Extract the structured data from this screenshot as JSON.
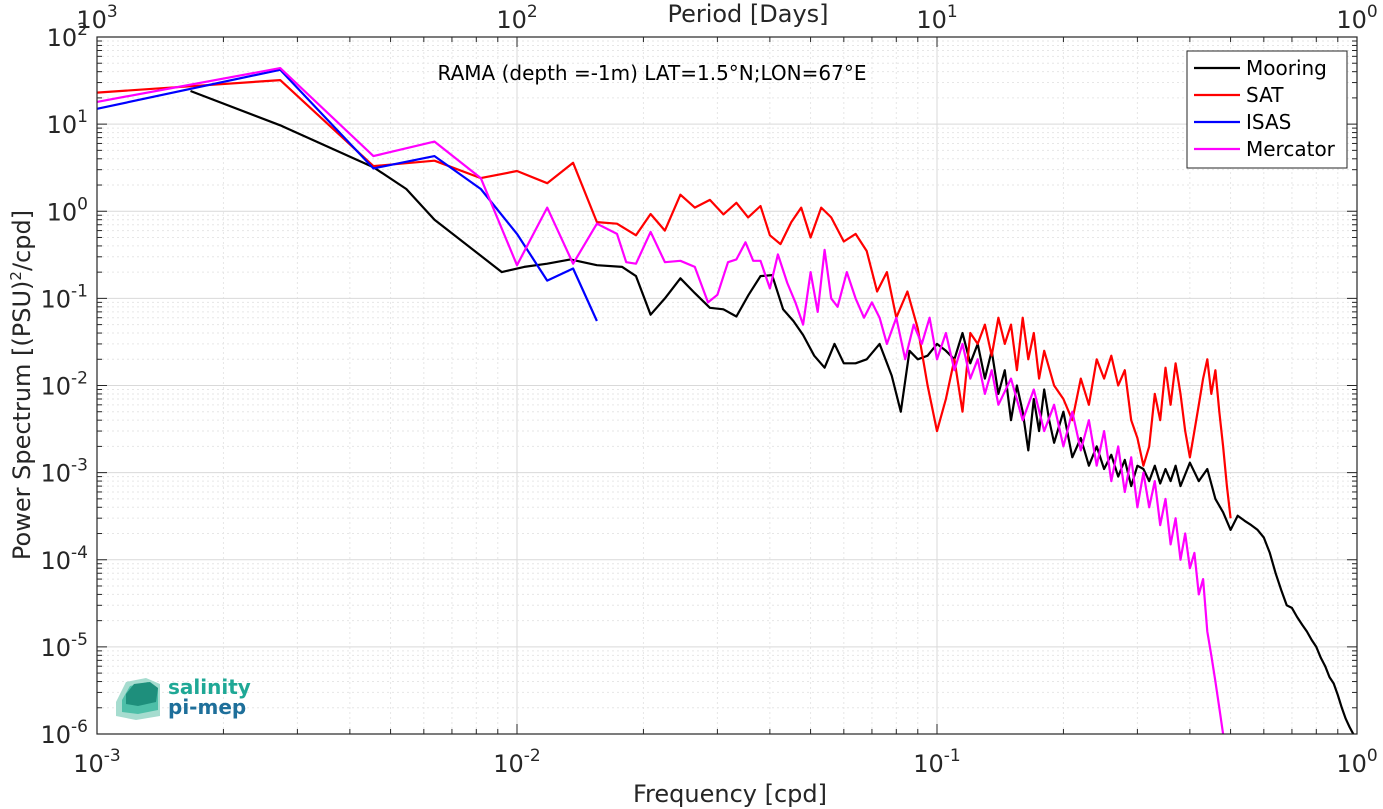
{
  "chart_data": {
    "type": "line",
    "title": "RAMA (depth =-1m) LAT=1.5°N;LON=67°E",
    "xlabel": "Frequency [cpd]",
    "ylabel": "Power Spectrum [(PSU)²/cpd]",
    "x2label": "Period [Days]",
    "xscale": "log",
    "yscale": "log",
    "xlim": [
      0.001,
      1
    ],
    "ylim": [
      1e-06,
      100
    ],
    "grid": true,
    "legend_position": "top-right",
    "x_ticks": [
      {
        "value": 0.001,
        "base": "10",
        "exp": "-3"
      },
      {
        "value": 0.01,
        "base": "10",
        "exp": "-2"
      },
      {
        "value": 0.1,
        "base": "10",
        "exp": "-1"
      },
      {
        "value": 1,
        "base": "10",
        "exp": "0"
      }
    ],
    "x2_ticks": [
      {
        "value": 0.001,
        "base": "10",
        "exp": "3"
      },
      {
        "value": 0.01,
        "base": "10",
        "exp": "2"
      },
      {
        "value": 0.1,
        "base": "10",
        "exp": "1"
      },
      {
        "value": 1,
        "base": "10",
        "exp": "0"
      }
    ],
    "y_ticks": [
      {
        "value": 100,
        "base": "10",
        "exp": "2"
      },
      {
        "value": 10,
        "base": "10",
        "exp": "1"
      },
      {
        "value": 1,
        "base": "10",
        "exp": "0"
      },
      {
        "value": 0.1,
        "base": "10",
        "exp": "-1"
      },
      {
        "value": 0.01,
        "base": "10",
        "exp": "-2"
      },
      {
        "value": 0.001,
        "base": "10",
        "exp": "-3"
      },
      {
        "value": 0.0001,
        "base": "10",
        "exp": "-4"
      },
      {
        "value": 1e-05,
        "base": "10",
        "exp": "-5"
      },
      {
        "value": 1e-06,
        "base": "10",
        "exp": "-6"
      }
    ],
    "series": [
      {
        "name": "Mooring",
        "color": "#000000",
        "points": [
          [
            0.00167,
            24
          ],
          [
            0.00273,
            9.7
          ],
          [
            0.00455,
            3.2
          ],
          [
            0.00545,
            1.8
          ],
          [
            0.00636,
            0.8
          ],
          [
            0.0092,
            0.2
          ],
          [
            0.0104,
            0.23
          ],
          [
            0.0118,
            0.25
          ],
          [
            0.0134,
            0.28
          ],
          [
            0.0155,
            0.24
          ],
          [
            0.0178,
            0.23
          ],
          [
            0.0192,
            0.18
          ],
          [
            0.0208,
            0.065
          ],
          [
            0.0225,
            0.1
          ],
          [
            0.0245,
            0.17
          ],
          [
            0.0265,
            0.115
          ],
          [
            0.0288,
            0.078
          ],
          [
            0.031,
            0.075
          ],
          [
            0.0333,
            0.062
          ],
          [
            0.0356,
            0.11
          ],
          [
            0.038,
            0.18
          ],
          [
            0.0405,
            0.185
          ],
          [
            0.043,
            0.075
          ],
          [
            0.0455,
            0.055
          ],
          [
            0.048,
            0.038
          ],
          [
            0.051,
            0.022
          ],
          [
            0.054,
            0.016
          ],
          [
            0.057,
            0.03
          ],
          [
            0.06,
            0.018
          ],
          [
            0.064,
            0.018
          ],
          [
            0.068,
            0.02
          ],
          [
            0.073,
            0.03
          ],
          [
            0.078,
            0.013
          ],
          [
            0.082,
            0.005
          ],
          [
            0.086,
            0.025
          ],
          [
            0.09,
            0.02
          ],
          [
            0.095,
            0.022
          ],
          [
            0.1,
            0.03
          ],
          [
            0.105,
            0.025
          ],
          [
            0.11,
            0.02
          ],
          [
            0.115,
            0.04
          ],
          [
            0.12,
            0.018
          ],
          [
            0.125,
            0.03
          ],
          [
            0.13,
            0.012
          ],
          [
            0.135,
            0.025
          ],
          [
            0.14,
            0.008
          ],
          [
            0.145,
            0.015
          ],
          [
            0.15,
            0.004
          ],
          [
            0.155,
            0.01
          ],
          [
            0.16,
            0.005
          ],
          [
            0.165,
            0.0018
          ],
          [
            0.17,
            0.007
          ],
          [
            0.175,
            0.003
          ],
          [
            0.18,
            0.009
          ],
          [
            0.185,
            0.004
          ],
          [
            0.19,
            0.0022
          ],
          [
            0.2,
            0.005
          ],
          [
            0.21,
            0.0015
          ],
          [
            0.22,
            0.0025
          ],
          [
            0.23,
            0.0012
          ],
          [
            0.24,
            0.002
          ],
          [
            0.25,
            0.0011
          ],
          [
            0.26,
            0.0016
          ],
          [
            0.27,
            0.0009
          ],
          [
            0.28,
            0.0014
          ],
          [
            0.29,
            0.0007
          ],
          [
            0.3,
            0.0012
          ],
          [
            0.31,
            0.0011
          ],
          [
            0.32,
            0.0008
          ],
          [
            0.33,
            0.0012
          ],
          [
            0.34,
            0.00075
          ],
          [
            0.35,
            0.0011
          ],
          [
            0.36,
            0.0008
          ],
          [
            0.37,
            0.0012
          ],
          [
            0.38,
            0.0007
          ],
          [
            0.4,
            0.0013
          ],
          [
            0.42,
            0.0008
          ],
          [
            0.44,
            0.0011
          ],
          [
            0.46,
            0.0005
          ],
          [
            0.48,
            0.00035
          ],
          [
            0.5,
            0.00022
          ],
          [
            0.52,
            0.00032
          ],
          [
            0.54,
            0.00028
          ],
          [
            0.56,
            0.00025
          ],
          [
            0.58,
            0.00022
          ],
          [
            0.6,
            0.00018
          ],
          [
            0.62,
            0.00012
          ],
          [
            0.64,
            7e-05
          ],
          [
            0.66,
            4.5e-05
          ],
          [
            0.68,
            3e-05
          ],
          [
            0.7,
            2.8e-05
          ],
          [
            0.72,
            2.2e-05
          ],
          [
            0.74,
            1.8e-05
          ],
          [
            0.76,
            1.5e-05
          ],
          [
            0.78,
            1.2e-05
          ],
          [
            0.8,
            1e-05
          ],
          [
            0.82,
            7.5e-06
          ],
          [
            0.84,
            6e-06
          ],
          [
            0.86,
            4.5e-06
          ],
          [
            0.88,
            3.8e-06
          ],
          [
            0.9,
            2.8e-06
          ],
          [
            0.92,
            2e-06
          ],
          [
            0.94,
            1.5e-06
          ],
          [
            0.96,
            1.2e-06
          ],
          [
            0.98,
            1e-06
          ]
        ]
      },
      {
        "name": "SAT",
        "color": "#ff0000",
        "points": [
          [
            0.001,
            23
          ],
          [
            0.00182,
            28
          ],
          [
            0.00273,
            32
          ],
          [
            0.00455,
            3.3
          ],
          [
            0.00636,
            3.8
          ],
          [
            0.0082,
            2.4
          ],
          [
            0.01,
            2.9
          ],
          [
            0.0118,
            2.1
          ],
          [
            0.0136,
            3.6
          ],
          [
            0.0155,
            0.75
          ],
          [
            0.0173,
            0.72
          ],
          [
            0.0192,
            0.53
          ],
          [
            0.0208,
            0.93
          ],
          [
            0.0225,
            0.6
          ],
          [
            0.0245,
            1.55
          ],
          [
            0.0265,
            1.1
          ],
          [
            0.0288,
            1.35
          ],
          [
            0.031,
            0.92
          ],
          [
            0.0333,
            1.25
          ],
          [
            0.0355,
            0.85
          ],
          [
            0.038,
            1.15
          ],
          [
            0.04,
            0.53
          ],
          [
            0.0424,
            0.42
          ],
          [
            0.045,
            0.75
          ],
          [
            0.0475,
            1.1
          ],
          [
            0.05,
            0.5
          ],
          [
            0.053,
            1.1
          ],
          [
            0.056,
            0.85
          ],
          [
            0.06,
            0.45
          ],
          [
            0.064,
            0.55
          ],
          [
            0.068,
            0.35
          ],
          [
            0.072,
            0.12
          ],
          [
            0.076,
            0.2
          ],
          [
            0.08,
            0.06
          ],
          [
            0.085,
            0.12
          ],
          [
            0.09,
            0.045
          ],
          [
            0.095,
            0.01
          ],
          [
            0.1,
            0.003
          ],
          [
            0.105,
            0.007
          ],
          [
            0.11,
            0.02
          ],
          [
            0.115,
            0.005
          ],
          [
            0.12,
            0.04
          ],
          [
            0.125,
            0.03
          ],
          [
            0.13,
            0.05
          ],
          [
            0.135,
            0.022
          ],
          [
            0.14,
            0.06
          ],
          [
            0.145,
            0.03
          ],
          [
            0.15,
            0.05
          ],
          [
            0.155,
            0.015
          ],
          [
            0.16,
            0.06
          ],
          [
            0.165,
            0.02
          ],
          [
            0.17,
            0.04
          ],
          [
            0.175,
            0.012
          ],
          [
            0.18,
            0.025
          ],
          [
            0.19,
            0.01
          ],
          [
            0.2,
            0.007
          ],
          [
            0.21,
            0.004
          ],
          [
            0.22,
            0.012
          ],
          [
            0.23,
            0.006
          ],
          [
            0.24,
            0.02
          ],
          [
            0.25,
            0.012
          ],
          [
            0.26,
            0.022
          ],
          [
            0.27,
            0.01
          ],
          [
            0.28,
            0.015
          ],
          [
            0.29,
            0.004
          ],
          [
            0.3,
            0.0025
          ],
          [
            0.31,
            0.0012
          ],
          [
            0.32,
            0.002
          ],
          [
            0.33,
            0.008
          ],
          [
            0.34,
            0.004
          ],
          [
            0.35,
            0.016
          ],
          [
            0.36,
            0.006
          ],
          [
            0.37,
            0.018
          ],
          [
            0.38,
            0.008
          ],
          [
            0.39,
            0.003
          ],
          [
            0.4,
            0.0015
          ],
          [
            0.41,
            0.003
          ],
          [
            0.42,
            0.006
          ],
          [
            0.43,
            0.012
          ],
          [
            0.44,
            0.02
          ],
          [
            0.45,
            0.008
          ],
          [
            0.46,
            0.015
          ],
          [
            0.47,
            0.005
          ],
          [
            0.48,
            0.002
          ],
          [
            0.49,
            0.0007
          ],
          [
            0.5,
            0.0003
          ]
        ]
      },
      {
        "name": "ISAS",
        "color": "#0000ff",
        "points": [
          [
            0.001,
            15
          ],
          [
            0.00273,
            42
          ],
          [
            0.00455,
            3.1
          ],
          [
            0.00636,
            4.3
          ],
          [
            0.0082,
            1.8
          ],
          [
            0.01,
            0.55
          ],
          [
            0.0118,
            0.16
          ],
          [
            0.0136,
            0.22
          ],
          [
            0.0155,
            0.055
          ]
        ]
      },
      {
        "name": "Mercator",
        "color": "#ff00ff",
        "points": [
          [
            0.001,
            18
          ],
          [
            0.00273,
            44
          ],
          [
            0.00455,
            4.3
          ],
          [
            0.00636,
            6.3
          ],
          [
            0.0082,
            2.4
          ],
          [
            0.01,
            0.24
          ],
          [
            0.0118,
            1.1
          ],
          [
            0.0136,
            0.25
          ],
          [
            0.0155,
            0.72
          ],
          [
            0.0173,
            0.55
          ],
          [
            0.0182,
            0.26
          ],
          [
            0.0192,
            0.25
          ],
          [
            0.0208,
            0.58
          ],
          [
            0.0225,
            0.26
          ],
          [
            0.0245,
            0.27
          ],
          [
            0.0265,
            0.23
          ],
          [
            0.0285,
            0.09
          ],
          [
            0.03,
            0.11
          ],
          [
            0.0318,
            0.26
          ],
          [
            0.0333,
            0.28
          ],
          [
            0.035,
            0.44
          ],
          [
            0.0365,
            0.27
          ],
          [
            0.038,
            0.27
          ],
          [
            0.04,
            0.13
          ],
          [
            0.0418,
            0.32
          ],
          [
            0.044,
            0.15
          ],
          [
            0.046,
            0.09
          ],
          [
            0.048,
            0.05
          ],
          [
            0.05,
            0.2
          ],
          [
            0.052,
            0.07
          ],
          [
            0.054,
            0.36
          ],
          [
            0.056,
            0.1
          ],
          [
            0.058,
            0.08
          ],
          [
            0.061,
            0.2
          ],
          [
            0.064,
            0.1
          ],
          [
            0.067,
            0.06
          ],
          [
            0.07,
            0.09
          ],
          [
            0.073,
            0.06
          ],
          [
            0.076,
            0.03
          ],
          [
            0.08,
            0.06
          ],
          [
            0.084,
            0.02
          ],
          [
            0.088,
            0.05
          ],
          [
            0.092,
            0.03
          ],
          [
            0.096,
            0.06
          ],
          [
            0.1,
            0.02
          ],
          [
            0.105,
            0.04
          ],
          [
            0.11,
            0.015
          ],
          [
            0.115,
            0.03
          ],
          [
            0.12,
            0.012
          ],
          [
            0.125,
            0.02
          ],
          [
            0.13,
            0.008
          ],
          [
            0.135,
            0.015
          ],
          [
            0.14,
            0.006
          ],
          [
            0.15,
            0.012
          ],
          [
            0.16,
            0.004
          ],
          [
            0.17,
            0.009
          ],
          [
            0.18,
            0.003
          ],
          [
            0.19,
            0.006
          ],
          [
            0.2,
            0.002
          ],
          [
            0.21,
            0.005
          ],
          [
            0.22,
            0.0018
          ],
          [
            0.23,
            0.004
          ],
          [
            0.24,
            0.0012
          ],
          [
            0.25,
            0.003
          ],
          [
            0.26,
            0.0008
          ],
          [
            0.27,
            0.002
          ],
          [
            0.28,
            0.0006
          ],
          [
            0.29,
            0.0015
          ],
          [
            0.3,
            0.0004
          ],
          [
            0.31,
            0.001
          ],
          [
            0.32,
            0.0004
          ],
          [
            0.33,
            0.0008
          ],
          [
            0.34,
            0.00025
          ],
          [
            0.35,
            0.0005
          ],
          [
            0.36,
            0.00015
          ],
          [
            0.37,
            0.0003
          ],
          [
            0.38,
            0.0001
          ],
          [
            0.39,
            0.0002
          ],
          [
            0.4,
            8e-05
          ],
          [
            0.41,
            0.00012
          ],
          [
            0.42,
            4e-05
          ],
          [
            0.43,
            6e-05
          ],
          [
            0.44,
            1.5e-05
          ],
          [
            0.45,
            8e-06
          ],
          [
            0.46,
            4e-06
          ],
          [
            0.47,
            2e-06
          ],
          [
            0.48,
            1e-06
          ]
        ]
      }
    ]
  },
  "logo": {
    "line1": "salinity",
    "line2": "pi-mep",
    "color": "#1fa896"
  }
}
